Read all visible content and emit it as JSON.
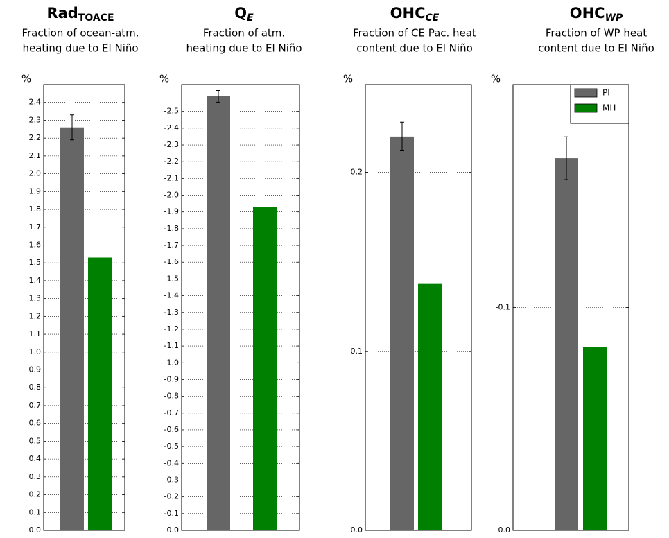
{
  "chart_data": [
    {
      "type": "bar",
      "title": "Rad",
      "title_subscript": "TOACE",
      "subtitle": [
        "Fraction of ocean-atm.",
        "heating due to El Niño"
      ],
      "ylabel": "%",
      "series": [
        {
          "color": "#666666",
          "values": [
            2.26
          ],
          "errors": [
            0.07
          ]
        },
        {
          "color": "#008000",
          "values": [
            1.53
          ],
          "errors": [
            null
          ]
        }
      ],
      "ylim": [
        0,
        2.5
      ],
      "yticks": [
        {
          "value": 0,
          "label": "0.0"
        },
        0.1,
        0.2,
        0.3,
        0.4,
        0.5,
        0.6,
        0.7,
        0.8,
        0.9,
        {
          "value": 1,
          "label": "1.0"
        },
        1.1,
        1.2,
        1.3,
        1.4,
        1.5,
        1.6,
        1.7,
        1.8,
        1.9,
        {
          "value": 2,
          "label": "2.0"
        },
        2.1,
        2.2,
        2.3,
        2.4
      ],
      "grid": true
    },
    {
      "type": "bar",
      "title": "Q",
      "title_subscript": "E",
      "subtitle": [
        "Fraction of atm.",
        "heating due to El Niño"
      ],
      "ylabel": "%",
      "series": [
        {
          "color": "#666666",
          "values": [
            -2.59
          ],
          "errors": [
            0.035
          ]
        },
        {
          "color": "#008000",
          "values": [
            -1.93
          ],
          "errors": [
            null
          ]
        }
      ],
      "ylim": [
        0,
        -2.66
      ],
      "yticks": [
        {
          "value": 0,
          "label": "0.0"
        },
        -0.1,
        -0.2,
        -0.3,
        -0.4,
        -0.5,
        -0.6,
        -0.7,
        -0.8,
        -0.9,
        {
          "value": -1,
          "label": "-1.0"
        },
        -1.1,
        -1.2,
        -1.3,
        -1.4,
        -1.5,
        -1.6,
        -1.7,
        -1.8,
        -1.9,
        {
          "value": -2,
          "label": "-2.0"
        },
        -2.1,
        -2.2,
        -2.3,
        -2.4,
        -2.5
      ],
      "grid": true
    },
    {
      "type": "bar",
      "title": "OHC",
      "title_subscript": "CE",
      "subtitle": [
        "Fraction of CE Pac. heat",
        "content due to El Niño"
      ],
      "ylabel": "%",
      "series": [
        {
          "color": "#666666",
          "values": [
            0.22
          ],
          "errors": [
            0.008
          ]
        },
        {
          "color": "#008000",
          "values": [
            0.138
          ],
          "errors": [
            null
          ]
        }
      ],
      "ylim": [
        0,
        0.249
      ],
      "yticks": [
        {
          "value": 0,
          "label": "0.0"
        },
        0.1,
        0.2
      ],
      "grid": true
    },
    {
      "type": "bar",
      "title": "OHC",
      "title_subscript": "WP",
      "subtitle": [
        "Fraction of WP heat",
        "content due to El Niño"
      ],
      "ylabel": "%",
      "series": [
        {
          "name": "PI",
          "color": "#666666",
          "values": [
            -0.167
          ],
          "errors": [
            0.0096
          ]
        },
        {
          "name": "MH",
          "color": "#008000",
          "values": [
            -0.0823
          ],
          "errors": [
            null
          ]
        }
      ],
      "ylim": [
        0,
        -0.2
      ],
      "yticks": [
        {
          "value": 0,
          "label": "0.0"
        },
        -0.1
      ],
      "grid": true,
      "legend": "upper right"
    }
  ]
}
